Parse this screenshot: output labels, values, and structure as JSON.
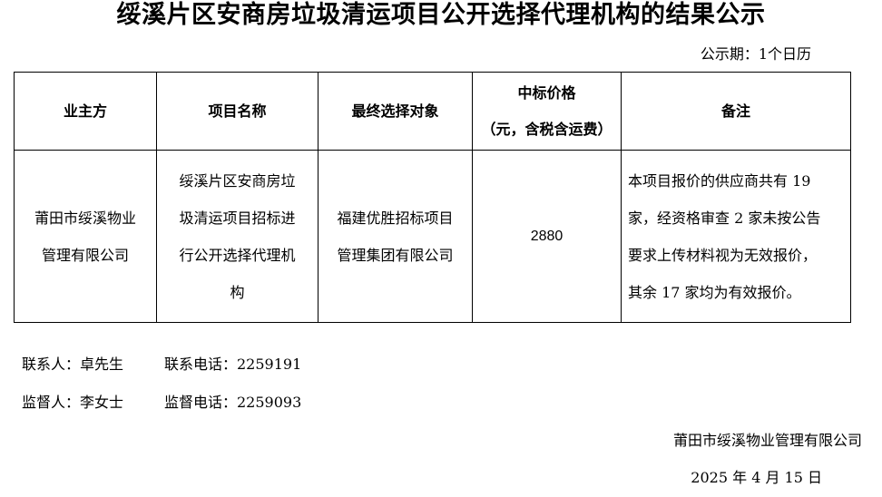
{
  "title": "绥溪片区安商房垃圾清运项目公开选择代理机构的结果公示",
  "period": "公示期：1个日历",
  "table": {
    "headers": [
      "业主方",
      "项目名称",
      "最终选择对象",
      "中标价格",
      "（元，含税含运费）",
      "备注"
    ],
    "row": {
      "owner": [
        "莆田市绥溪物业",
        "管理有限公司"
      ],
      "project": [
        "绥溪片区安商房垃",
        "圾清运项目招标进",
        "行公开选择代理机",
        "构"
      ],
      "selected": [
        "福建优胜招标项目",
        "管理集团有限公司"
      ],
      "price": "2880",
      "note": [
        "本项目报价的供应商共有 19",
        "家，经资格审查 2 家未按公告",
        "要求上传材料视为无效报价，",
        "其余 17 家均为有效报价。"
      ]
    }
  },
  "contacts": {
    "contact_person": "联系人：卓先生",
    "contact_phone": "联系电话：2259191",
    "supervisor": "监督人：李女士",
    "supervisor_phone": "监督电话：2259093"
  },
  "signature": {
    "org": "莆田市绥溪物业管理有限公司",
    "date": "2025 年 4 月 15 日"
  }
}
